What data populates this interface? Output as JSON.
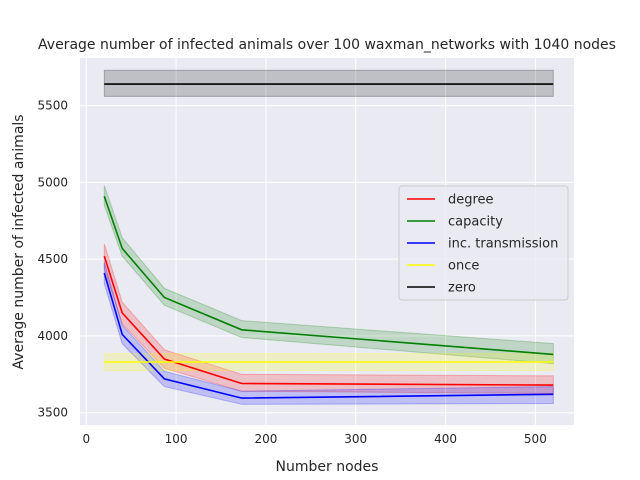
{
  "chart_data": {
    "type": "line",
    "title": "Average number of infected animals over 100 waxman_networks with 1040 nodes",
    "xlabel": "Number nodes",
    "ylabel": "Average number of infected animals",
    "xlim": [
      -7,
      543
    ],
    "ylim": [
      3420,
      5810
    ],
    "xticks": [
      0,
      100,
      200,
      300,
      400,
      500
    ],
    "yticks": [
      3500,
      4000,
      4500,
      5000,
      5500
    ],
    "grid": true,
    "legend_position": "center-right",
    "x": [
      20,
      40,
      87,
      173,
      520
    ],
    "series": [
      {
        "name": "degree",
        "color": "#ff0000",
        "values": [
          4520,
          4150,
          3850,
          3690,
          3680
        ],
        "lower": [
          4440,
          4080,
          3790,
          3640,
          3625
        ],
        "upper": [
          4600,
          4220,
          3910,
          3750,
          3740
        ]
      },
      {
        "name": "capacity",
        "color": "#008000",
        "values": [
          4910,
          4570,
          4250,
          4040,
          3880
        ],
        "lower": [
          4850,
          4520,
          4200,
          3990,
          3820
        ],
        "upper": [
          4980,
          4640,
          4310,
          4100,
          3950
        ]
      },
      {
        "name": "inc. transmission",
        "color": "#0000ff",
        "values": [
          4410,
          4010,
          3720,
          3595,
          3620
        ],
        "lower": [
          4340,
          3950,
          3670,
          3555,
          3560
        ],
        "upper": [
          4480,
          4070,
          3770,
          3640,
          3670
        ]
      },
      {
        "name": "once",
        "color": "#ffff00",
        "values": [
          3830,
          3830,
          3830,
          3830,
          3830
        ],
        "lower": [
          3775,
          3775,
          3775,
          3775,
          3775
        ],
        "upper": [
          3885,
          3885,
          3885,
          3885,
          3885
        ]
      },
      {
        "name": "zero",
        "color": "#000000",
        "values": [
          5640,
          5640,
          5640,
          5640,
          5640
        ],
        "lower": [
          5560,
          5560,
          5560,
          5560,
          5560
        ],
        "upper": [
          5730,
          5730,
          5730,
          5730,
          5730
        ]
      }
    ]
  }
}
